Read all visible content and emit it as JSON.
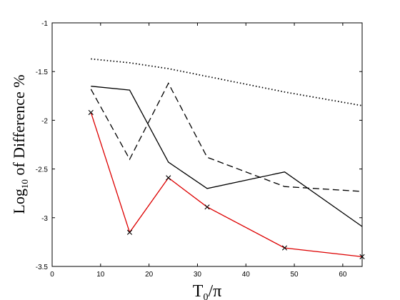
{
  "chart_data": {
    "type": "line",
    "title": "",
    "xlabel": {
      "main": "T",
      "sub": "0",
      "rest": "/π"
    },
    "ylabel": {
      "pre": "Log",
      "sub": "10",
      "rest": " of Difference %"
    },
    "xlim": [
      0,
      64
    ],
    "ylim": [
      -3.5,
      -1
    ],
    "xticks": [
      0,
      10,
      20,
      30,
      40,
      50,
      60
    ],
    "yticks": [
      -3.5,
      -3,
      -2.5,
      -2,
      -1.5,
      -1
    ],
    "ytick_labels": [
      "-3.5",
      "-3",
      "-2.5",
      "-2",
      "-1.5",
      "-1"
    ],
    "grid": false,
    "series": [
      {
        "style": "dotted",
        "color": "#000000",
        "marker": "none",
        "x": [
          8,
          16,
          24,
          32,
          48,
          64
        ],
        "y": [
          -1.37,
          -1.41,
          -1.47,
          -1.55,
          -1.71,
          -1.85
        ]
      },
      {
        "style": "solid",
        "color": "#000000",
        "marker": "none",
        "x": [
          8,
          16,
          24,
          32,
          48,
          64
        ],
        "y": [
          -1.65,
          -1.69,
          -2.43,
          -2.7,
          -2.53,
          -3.09
        ]
      },
      {
        "style": "dashed",
        "color": "#000000",
        "marker": "none",
        "x": [
          8,
          16,
          24,
          32,
          48,
          64
        ],
        "y": [
          -1.68,
          -2.4,
          -1.62,
          -2.38,
          -2.68,
          -2.73
        ]
      },
      {
        "style": "solid",
        "color": "#dd0000",
        "marker": "x",
        "x": [
          8,
          16,
          24,
          32,
          48,
          64
        ],
        "y": [
          -1.92,
          -3.15,
          -2.59,
          -2.89,
          -3.31,
          -3.4
        ]
      }
    ]
  }
}
